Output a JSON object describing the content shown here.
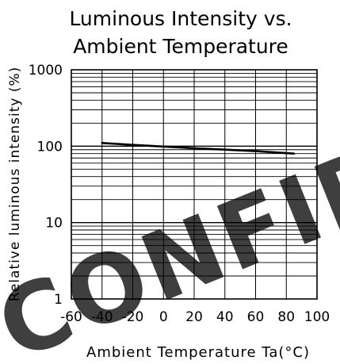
{
  "chart_data": {
    "type": "line",
    "title_lines": [
      "Luminous Intensity vs.",
      "Ambient Temperature"
    ],
    "xlabel": "Ambient Temperature Ta(°C)",
    "ylabel": "Relative luminous intensity (%)",
    "x_scale": "linear",
    "y_scale": "log",
    "xlim": [
      -60,
      100
    ],
    "ylim": [
      1,
      1000
    ],
    "grid": true,
    "x_ticks": [
      "-60",
      "-40",
      "-20",
      "0",
      "20",
      "40",
      "60",
      "80",
      "100"
    ],
    "y_ticks": [
      "1",
      "10",
      "100",
      "1000"
    ],
    "series": [
      {
        "x": [
          -40,
          -20,
          0,
          20,
          40,
          60,
          85
        ],
        "y": [
          110,
          104,
          99,
          94,
          90,
          86,
          80
        ]
      }
    ],
    "watermark": "CONFIDENTIAL",
    "colors": {
      "line": "#000000",
      "grid": "#000000",
      "watermark": "#f2b9b9"
    }
  }
}
